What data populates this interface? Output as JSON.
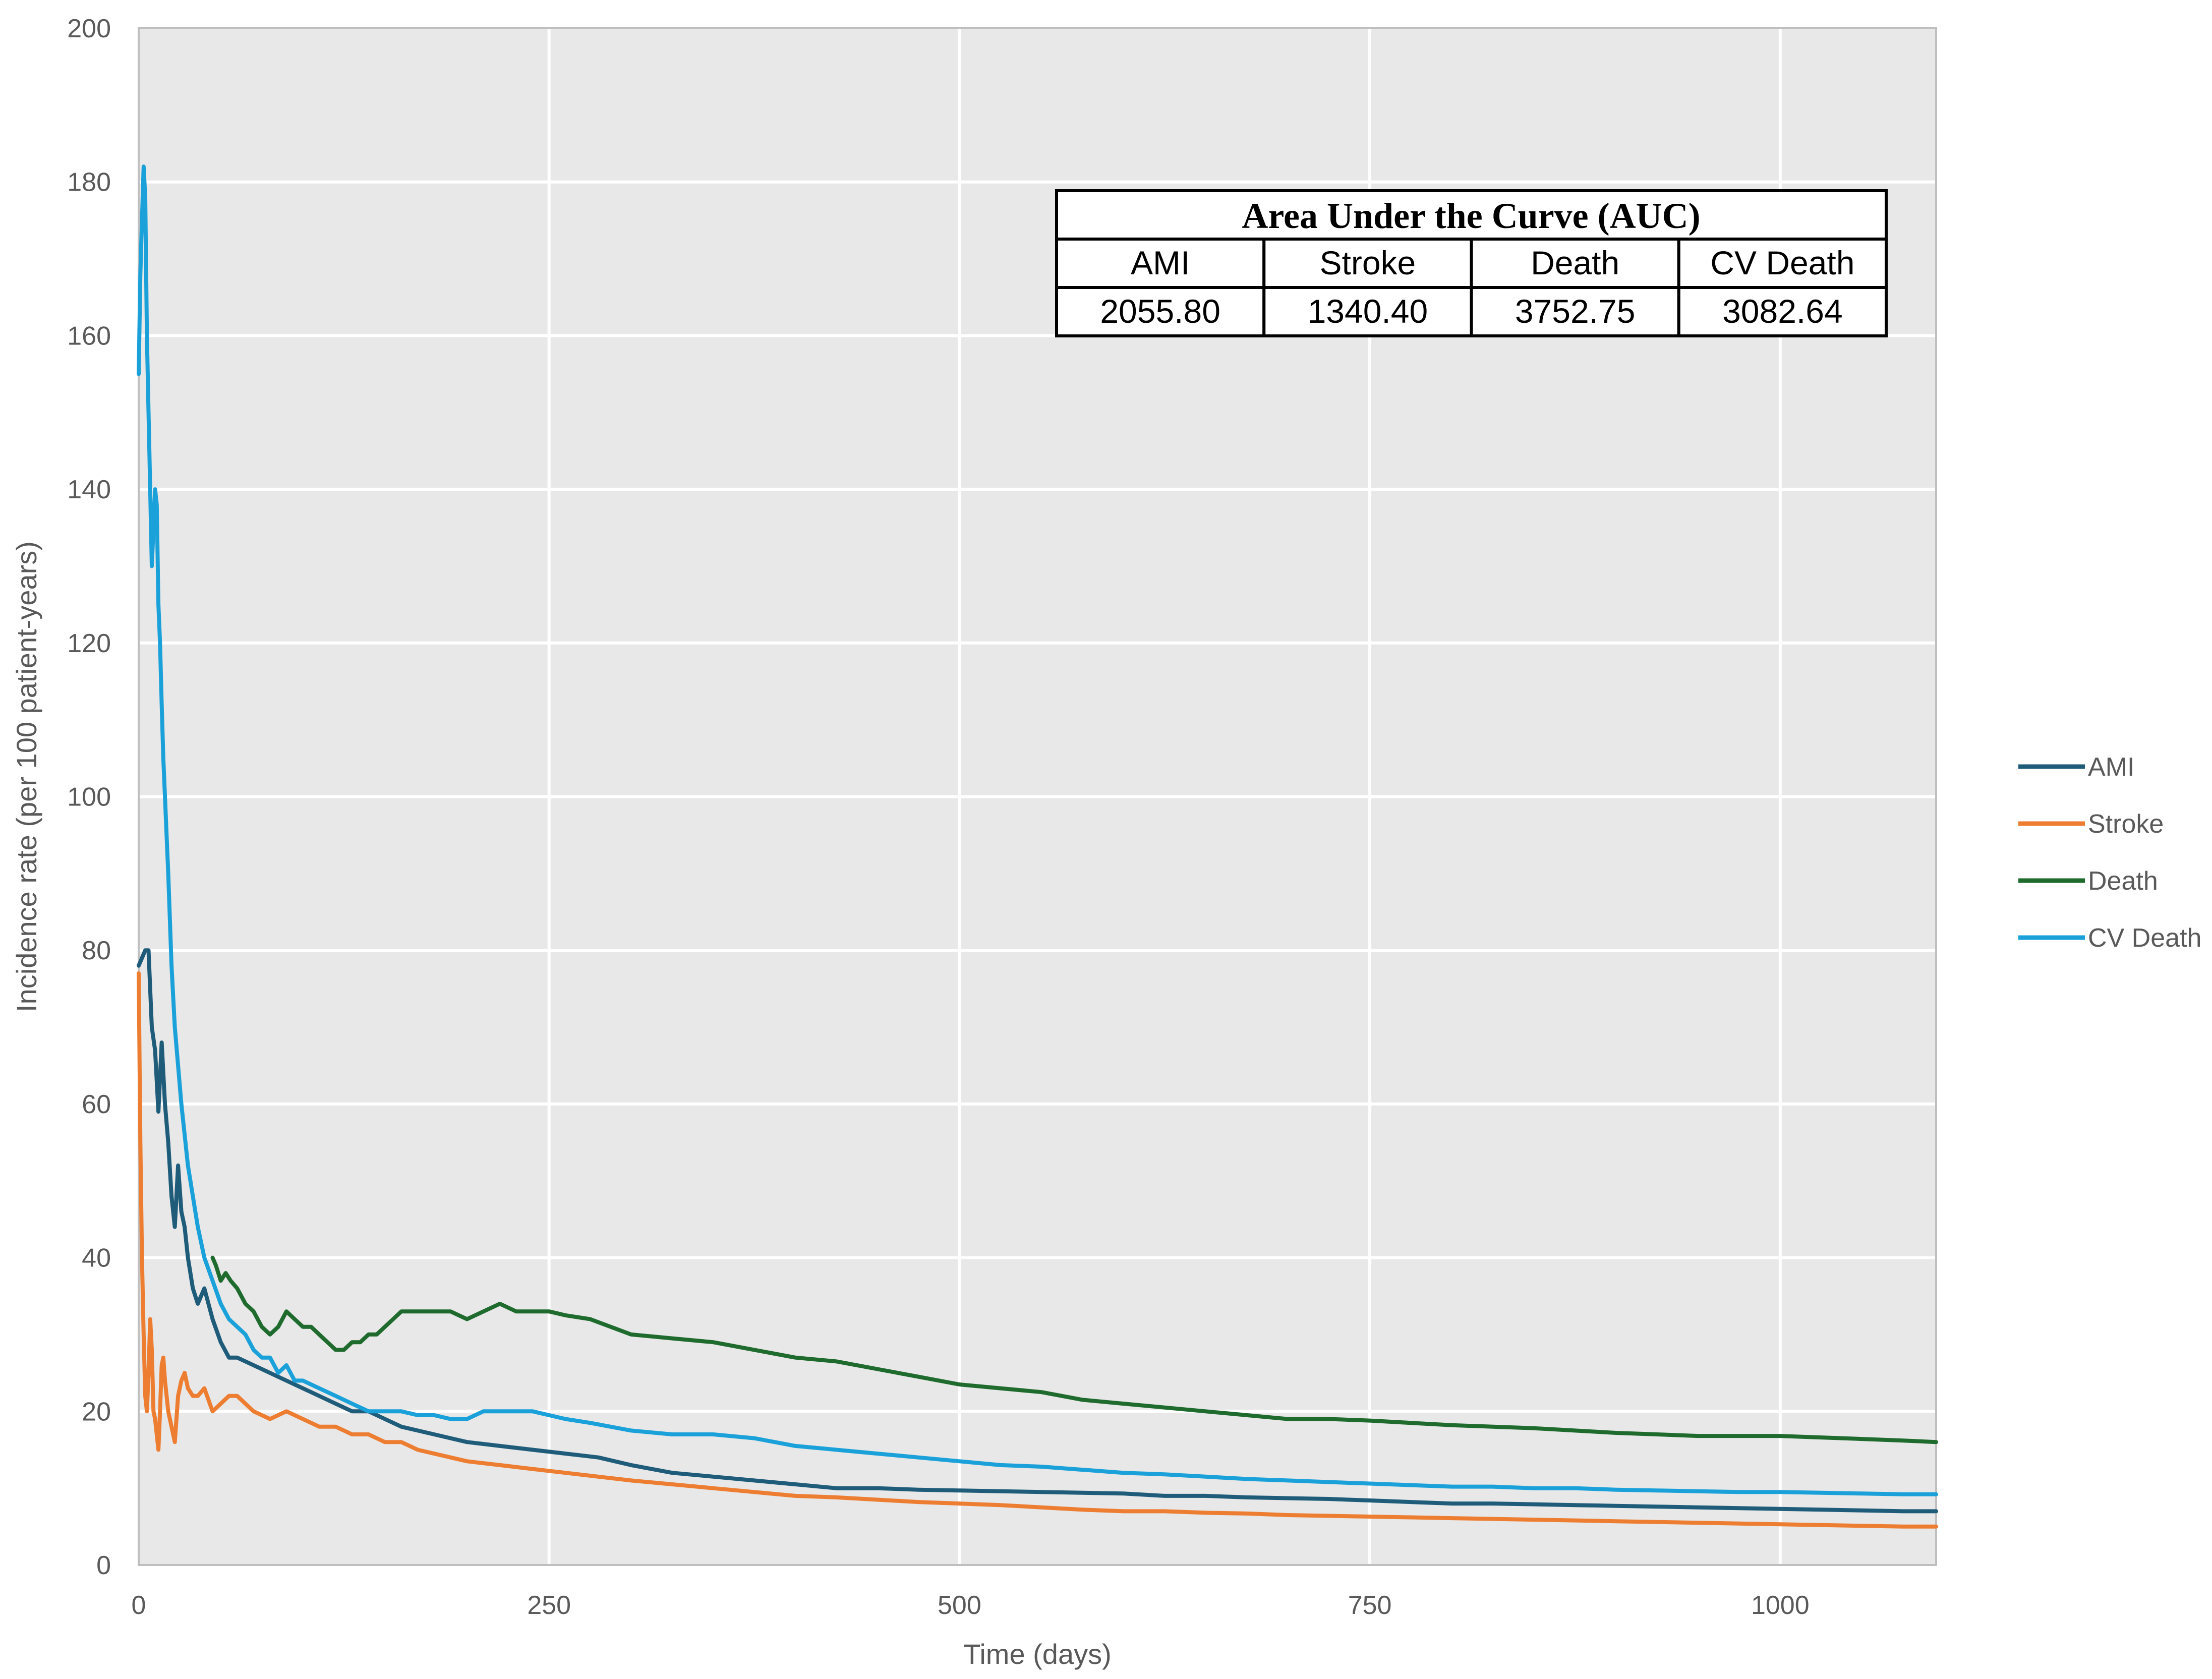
{
  "chart_data": {
    "type": "line",
    "title": "",
    "xlabel": "Time (days)",
    "ylabel": "Incidence rate (per 100 patient-years)",
    "xlim": [
      0,
      1095
    ],
    "ylim": [
      0,
      200
    ],
    "x_ticks": [
      0,
      250,
      500,
      750,
      1000
    ],
    "y_ticks": [
      0,
      20,
      40,
      60,
      80,
      100,
      120,
      140,
      160,
      180,
      200
    ],
    "grid": true,
    "legend_position": "right",
    "plot_background": "#e8e8e8",
    "series": [
      {
        "name": "AMI",
        "color": "#1f5c7a",
        "points": [
          [
            0,
            78
          ],
          [
            2,
            79
          ],
          [
            4,
            80
          ],
          [
            6,
            80
          ],
          [
            8,
            70
          ],
          [
            10,
            67
          ],
          [
            12,
            59
          ],
          [
            14,
            68
          ],
          [
            16,
            60
          ],
          [
            18,
            55
          ],
          [
            20,
            48
          ],
          [
            22,
            44
          ],
          [
            24,
            52
          ],
          [
            26,
            46
          ],
          [
            28,
            44
          ],
          [
            30,
            40
          ],
          [
            33,
            36
          ],
          [
            36,
            34
          ],
          [
            40,
            36
          ],
          [
            45,
            32
          ],
          [
            50,
            29
          ],
          [
            55,
            27
          ],
          [
            60,
            27
          ],
          [
            70,
            26
          ],
          [
            80,
            25
          ],
          [
            90,
            24
          ],
          [
            100,
            23
          ],
          [
            110,
            22
          ],
          [
            120,
            21
          ],
          [
            130,
            20
          ],
          [
            140,
            20
          ],
          [
            150,
            19
          ],
          [
            160,
            18
          ],
          [
            170,
            17.5
          ],
          [
            180,
            17
          ],
          [
            190,
            16.5
          ],
          [
            200,
            16
          ],
          [
            220,
            15.5
          ],
          [
            240,
            15
          ],
          [
            260,
            14.5
          ],
          [
            280,
            14
          ],
          [
            300,
            13
          ],
          [
            325,
            12
          ],
          [
            350,
            11.5
          ],
          [
            375,
            11
          ],
          [
            400,
            10.5
          ],
          [
            425,
            10
          ],
          [
            450,
            10
          ],
          [
            475,
            9.8
          ],
          [
            500,
            9.7
          ],
          [
            525,
            9.6
          ],
          [
            550,
            9.5
          ],
          [
            575,
            9.4
          ],
          [
            600,
            9.3
          ],
          [
            625,
            9
          ],
          [
            650,
            9
          ],
          [
            675,
            8.8
          ],
          [
            700,
            8.7
          ],
          [
            725,
            8.6
          ],
          [
            750,
            8.4
          ],
          [
            775,
            8.2
          ],
          [
            800,
            8
          ],
          [
            825,
            8
          ],
          [
            850,
            7.9
          ],
          [
            875,
            7.8
          ],
          [
            900,
            7.7
          ],
          [
            925,
            7.6
          ],
          [
            950,
            7.5
          ],
          [
            975,
            7.4
          ],
          [
            1000,
            7.3
          ],
          [
            1025,
            7.2
          ],
          [
            1050,
            7.1
          ],
          [
            1075,
            7.0
          ],
          [
            1095,
            7.0
          ]
        ]
      },
      {
        "name": "Stroke",
        "color": "#ed7d31",
        "points": [
          [
            0,
            77
          ],
          [
            1,
            55
          ],
          [
            2,
            40
          ],
          [
            3,
            30
          ],
          [
            4,
            22
          ],
          [
            5,
            20
          ],
          [
            6,
            25
          ],
          [
            7,
            32
          ],
          [
            8,
            28
          ],
          [
            9,
            20
          ],
          [
            10,
            19
          ],
          [
            11,
            17
          ],
          [
            12,
            15
          ],
          [
            13,
            20
          ],
          [
            14,
            26
          ],
          [
            15,
            27
          ],
          [
            16,
            24
          ],
          [
            18,
            20
          ],
          [
            20,
            18
          ],
          [
            22,
            16
          ],
          [
            24,
            22
          ],
          [
            26,
            24
          ],
          [
            28,
            25
          ],
          [
            30,
            23
          ],
          [
            33,
            22
          ],
          [
            36,
            22
          ],
          [
            40,
            23
          ],
          [
            45,
            20
          ],
          [
            50,
            21
          ],
          [
            55,
            22
          ],
          [
            60,
            22
          ],
          [
            65,
            21
          ],
          [
            70,
            20
          ],
          [
            80,
            19
          ],
          [
            90,
            20
          ],
          [
            100,
            19
          ],
          [
            110,
            18
          ],
          [
            120,
            18
          ],
          [
            130,
            17
          ],
          [
            140,
            17
          ],
          [
            150,
            16
          ],
          [
            160,
            16
          ],
          [
            170,
            15
          ],
          [
            180,
            14.5
          ],
          [
            190,
            14
          ],
          [
            200,
            13.5
          ],
          [
            220,
            13
          ],
          [
            240,
            12.5
          ],
          [
            260,
            12
          ],
          [
            280,
            11.5
          ],
          [
            300,
            11
          ],
          [
            325,
            10.5
          ],
          [
            350,
            10
          ],
          [
            375,
            9.5
          ],
          [
            400,
            9
          ],
          [
            425,
            8.8
          ],
          [
            450,
            8.5
          ],
          [
            475,
            8.2
          ],
          [
            500,
            8
          ],
          [
            525,
            7.8
          ],
          [
            550,
            7.5
          ],
          [
            575,
            7.2
          ],
          [
            600,
            7
          ],
          [
            625,
            7
          ],
          [
            650,
            6.8
          ],
          [
            675,
            6.7
          ],
          [
            700,
            6.5
          ],
          [
            725,
            6.4
          ],
          [
            750,
            6.3
          ],
          [
            775,
            6.2
          ],
          [
            800,
            6.1
          ],
          [
            825,
            6
          ],
          [
            850,
            5.9
          ],
          [
            875,
            5.8
          ],
          [
            900,
            5.7
          ],
          [
            925,
            5.6
          ],
          [
            950,
            5.5
          ],
          [
            975,
            5.4
          ],
          [
            1000,
            5.3
          ],
          [
            1025,
            5.2
          ],
          [
            1050,
            5.1
          ],
          [
            1075,
            5.0
          ],
          [
            1095,
            5.0
          ]
        ]
      },
      {
        "name": "Death",
        "color": "#1e6b2d",
        "points": [
          [
            45,
            40
          ],
          [
            47,
            39
          ],
          [
            50,
            37
          ],
          [
            53,
            38
          ],
          [
            56,
            37
          ],
          [
            60,
            36
          ],
          [
            65,
            34
          ],
          [
            70,
            33
          ],
          [
            75,
            31
          ],
          [
            80,
            30
          ],
          [
            85,
            31
          ],
          [
            90,
            33
          ],
          [
            95,
            32
          ],
          [
            100,
            31
          ],
          [
            105,
            31
          ],
          [
            110,
            30
          ],
          [
            115,
            29
          ],
          [
            120,
            28
          ],
          [
            125,
            28
          ],
          [
            130,
            29
          ],
          [
            135,
            29
          ],
          [
            140,
            30
          ],
          [
            145,
            30
          ],
          [
            150,
            31
          ],
          [
            155,
            32
          ],
          [
            160,
            33
          ],
          [
            170,
            33
          ],
          [
            180,
            33
          ],
          [
            190,
            33
          ],
          [
            200,
            32
          ],
          [
            210,
            33
          ],
          [
            220,
            34
          ],
          [
            230,
            33
          ],
          [
            240,
            33
          ],
          [
            250,
            33
          ],
          [
            260,
            32.5
          ],
          [
            275,
            32
          ],
          [
            300,
            30
          ],
          [
            325,
            29.5
          ],
          [
            350,
            29
          ],
          [
            375,
            28
          ],
          [
            400,
            27
          ],
          [
            425,
            26.5
          ],
          [
            450,
            25.5
          ],
          [
            475,
            24.5
          ],
          [
            500,
            23.5
          ],
          [
            525,
            23
          ],
          [
            550,
            22.5
          ],
          [
            575,
            21.5
          ],
          [
            600,
            21
          ],
          [
            625,
            20.5
          ],
          [
            650,
            20
          ],
          [
            675,
            19.5
          ],
          [
            700,
            19
          ],
          [
            725,
            19
          ],
          [
            750,
            18.8
          ],
          [
            775,
            18.5
          ],
          [
            800,
            18.2
          ],
          [
            825,
            18
          ],
          [
            850,
            17.8
          ],
          [
            875,
            17.5
          ],
          [
            900,
            17.2
          ],
          [
            925,
            17
          ],
          [
            950,
            16.8
          ],
          [
            975,
            16.8
          ],
          [
            1000,
            16.8
          ],
          [
            1025,
            16.6
          ],
          [
            1050,
            16.4
          ],
          [
            1075,
            16.2
          ],
          [
            1095,
            16.0
          ]
        ]
      },
      {
        "name": "CV Death",
        "color": "#1ba1d9",
        "points": [
          [
            0,
            155
          ],
          [
            1,
            168
          ],
          [
            2,
            175
          ],
          [
            3,
            182
          ],
          [
            4,
            178
          ],
          [
            5,
            160
          ],
          [
            6,
            150
          ],
          [
            7,
            140
          ],
          [
            8,
            130
          ],
          [
            9,
            135
          ],
          [
            10,
            140
          ],
          [
            11,
            138
          ],
          [
            12,
            125
          ],
          [
            13,
            120
          ],
          [
            14,
            112
          ],
          [
            15,
            105
          ],
          [
            16,
            100
          ],
          [
            17,
            95
          ],
          [
            18,
            90
          ],
          [
            20,
            78
          ],
          [
            22,
            70
          ],
          [
            24,
            65
          ],
          [
            26,
            60
          ],
          [
            28,
            56
          ],
          [
            30,
            52
          ],
          [
            33,
            48
          ],
          [
            36,
            44
          ],
          [
            40,
            40
          ],
          [
            45,
            37
          ],
          [
            50,
            34
          ],
          [
            55,
            32
          ],
          [
            60,
            31
          ],
          [
            65,
            30
          ],
          [
            70,
            28
          ],
          [
            75,
            27
          ],
          [
            80,
            27
          ],
          [
            85,
            25
          ],
          [
            90,
            26
          ],
          [
            95,
            24
          ],
          [
            100,
            24
          ],
          [
            110,
            23
          ],
          [
            120,
            22
          ],
          [
            130,
            21
          ],
          [
            140,
            20
          ],
          [
            150,
            20
          ],
          [
            160,
            20
          ],
          [
            170,
            19.5
          ],
          [
            180,
            19.5
          ],
          [
            190,
            19
          ],
          [
            200,
            19
          ],
          [
            210,
            20
          ],
          [
            220,
            20
          ],
          [
            230,
            20
          ],
          [
            240,
            20
          ],
          [
            250,
            19.5
          ],
          [
            260,
            19
          ],
          [
            275,
            18.5
          ],
          [
            300,
            17.5
          ],
          [
            325,
            17
          ],
          [
            350,
            17
          ],
          [
            375,
            16.5
          ],
          [
            400,
            15.5
          ],
          [
            425,
            15
          ],
          [
            450,
            14.5
          ],
          [
            475,
            14
          ],
          [
            500,
            13.5
          ],
          [
            525,
            13
          ],
          [
            550,
            12.8
          ],
          [
            575,
            12.4
          ],
          [
            600,
            12
          ],
          [
            625,
            11.8
          ],
          [
            650,
            11.5
          ],
          [
            675,
            11.2
          ],
          [
            700,
            11
          ],
          [
            725,
            10.8
          ],
          [
            750,
            10.6
          ],
          [
            775,
            10.4
          ],
          [
            800,
            10.2
          ],
          [
            825,
            10.2
          ],
          [
            850,
            10
          ],
          [
            875,
            10
          ],
          [
            900,
            9.8
          ],
          [
            925,
            9.7
          ],
          [
            950,
            9.6
          ],
          [
            975,
            9.5
          ],
          [
            1000,
            9.5
          ],
          [
            1025,
            9.4
          ],
          [
            1050,
            9.3
          ],
          [
            1075,
            9.2
          ],
          [
            1095,
            9.2
          ]
        ]
      }
    ]
  },
  "auc_table": {
    "title": "Area Under the Curve (AUC)",
    "headers": [
      "AMI",
      "Stroke",
      "Death",
      "CV Death"
    ],
    "values": [
      "2055.80",
      "1340.40",
      "3752.75",
      "3082.64"
    ]
  }
}
